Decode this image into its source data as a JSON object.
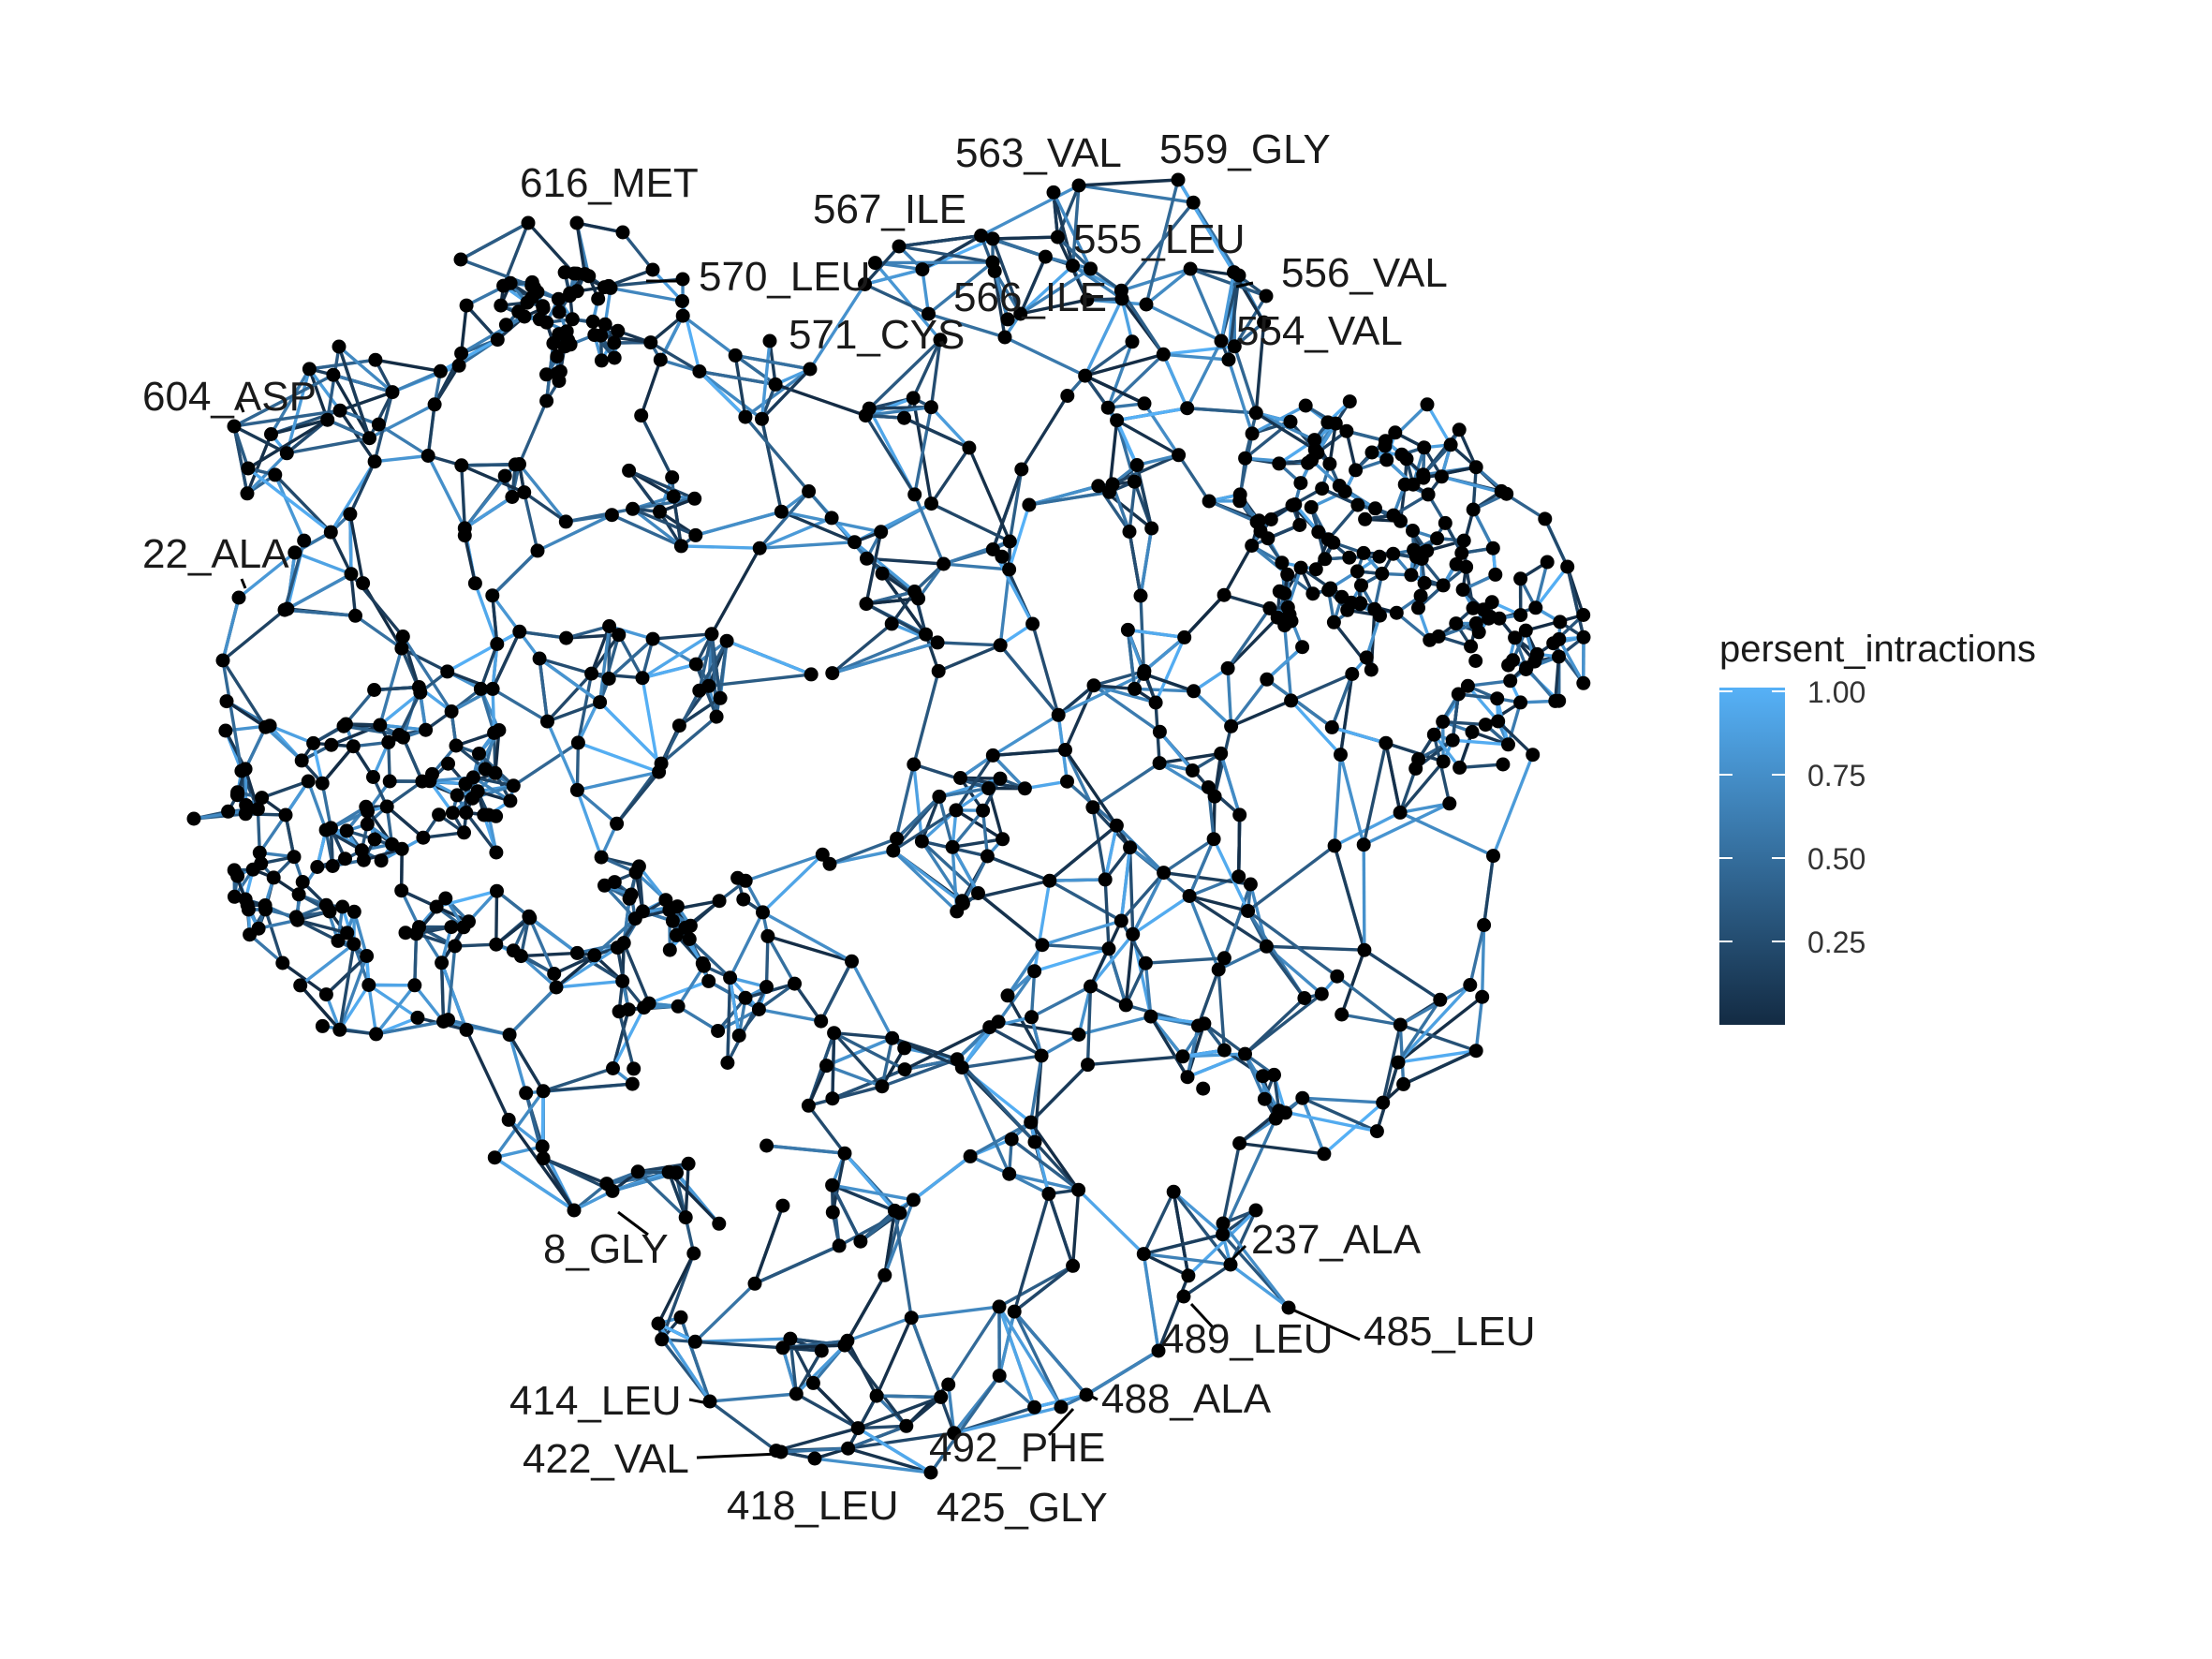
{
  "legend": {
    "title": "persent_intractions",
    "ticks": [
      "1.00",
      "0.75",
      "0.50",
      "0.25"
    ],
    "tick_values": [
      1.0,
      0.75,
      0.5,
      0.25
    ],
    "range": [
      0.0,
      1.0
    ],
    "low_color": "#132B43",
    "high_color": "#56B1F7"
  },
  "node_color": "#000000",
  "labels": [
    "616_MET",
    "570_LEU",
    "571_CYS",
    "567_ILE",
    "563_VAL",
    "559_GLY",
    "555_LEU",
    "556_VAL",
    "566_ILE",
    "554_VAL",
    "604_ASP",
    "22_ALA",
    "8_GLY",
    "237_ALA",
    "489_LEU",
    "485_LEU",
    "488_ALA",
    "492_PHE",
    "425_GLY",
    "418_LEU",
    "422_VAL",
    "414_LEU"
  ]
}
